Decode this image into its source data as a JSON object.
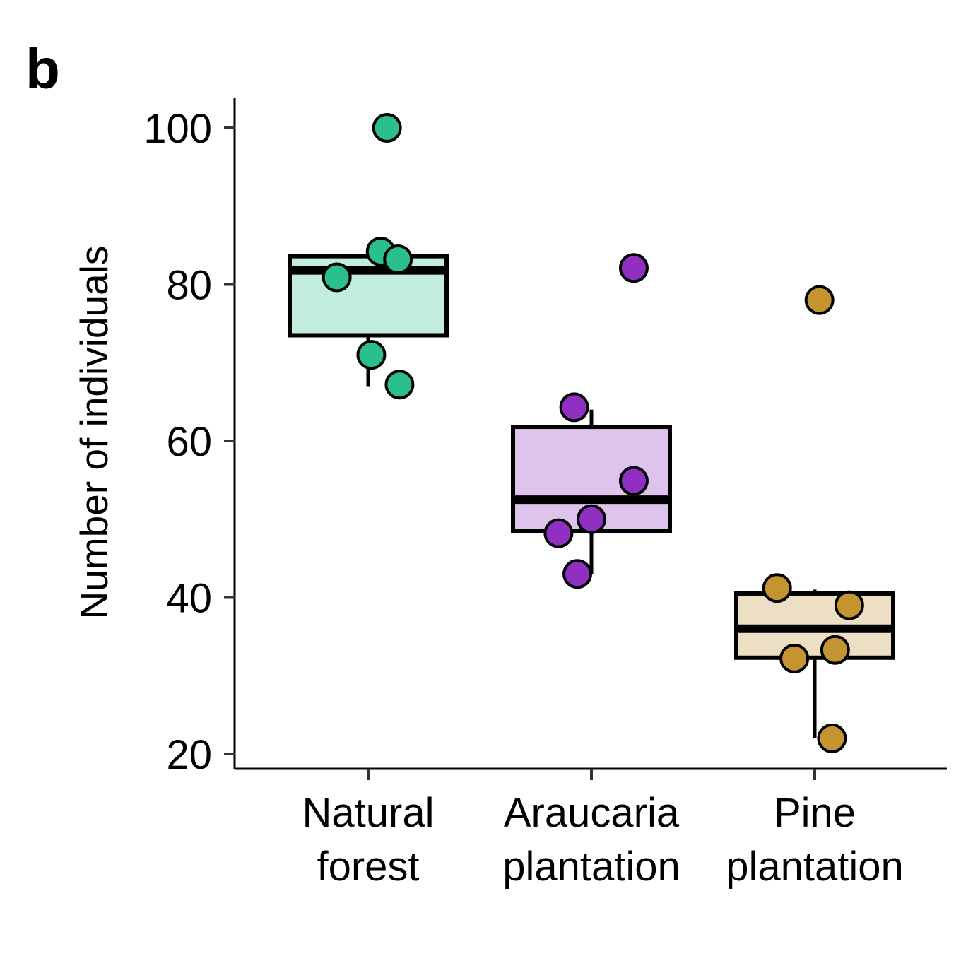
{
  "panel_label": "b",
  "chart_data": {
    "type": "boxplot",
    "ylabel": "Number of individuals",
    "ylim": [
      18,
      104
    ],
    "yticks": [
      20,
      40,
      60,
      80,
      100
    ],
    "categories": [
      {
        "lines": [
          "Natural",
          "forest"
        ]
      },
      {
        "lines": [
          "Araucaria",
          "plantation"
        ]
      },
      {
        "lines": [
          "Pine",
          "plantation"
        ]
      }
    ],
    "groups": [
      {
        "fill": "#c2ecdd",
        "point_color": "#2bbf90",
        "box": {
          "q1": 73.5,
          "median": 81.8,
          "q3": 83.6,
          "whisker_low": 67,
          "whisker_high": 83.6
        },
        "points": [
          {
            "offset": 0.12,
            "y": 100
          },
          {
            "offset": 0.08,
            "y": 84.2
          },
          {
            "offset": 0.19,
            "y": 83.2
          },
          {
            "offset": -0.2,
            "y": 80.9
          },
          {
            "offset": 0.02,
            "y": 71
          },
          {
            "offset": 0.2,
            "y": 67.2
          }
        ]
      },
      {
        "fill": "#dec3ec",
        "point_color": "#9030c3",
        "box": {
          "q1": 48.5,
          "median": 52.5,
          "q3": 61.8,
          "whisker_low": 43,
          "whisker_high": 64
        },
        "points": [
          {
            "offset": 0.27,
            "y": 82.1
          },
          {
            "offset": -0.11,
            "y": 64.3
          },
          {
            "offset": 0.27,
            "y": 54.9
          },
          {
            "offset": 0.0,
            "y": 50
          },
          {
            "offset": -0.21,
            "y": 48.2
          },
          {
            "offset": -0.09,
            "y": 43
          }
        ]
      },
      {
        "fill": "#eddfc3",
        "point_color": "#c49430",
        "box": {
          "q1": 32.3,
          "median": 36,
          "q3": 40.5,
          "whisker_low": 22,
          "whisker_high": 41
        },
        "points": [
          {
            "offset": 0.03,
            "y": 78
          },
          {
            "offset": -0.24,
            "y": 41.2
          },
          {
            "offset": 0.22,
            "y": 39
          },
          {
            "offset": 0.13,
            "y": 33.3
          },
          {
            "offset": -0.13,
            "y": 32.2
          },
          {
            "offset": 0.11,
            "y": 22
          }
        ]
      }
    ]
  }
}
